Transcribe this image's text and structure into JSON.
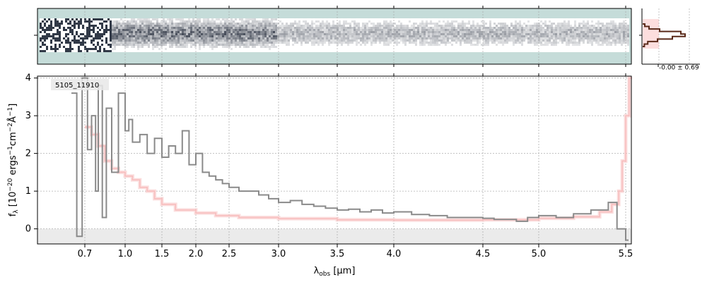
{
  "figure": {
    "label": "5105_11910",
    "hist_annotation": "-0.00 ± 0.69"
  },
  "colors": {
    "spectrum": "#8a8a8a",
    "model": "#f7bcbc",
    "model_fill": "#fbd6d6",
    "stack_background": "#c5dcd9",
    "stack_dark": "#1b2333",
    "hist_line": "#5a2a1a",
    "grid": "#b0b0b0",
    "zero_band": "#ebebeb"
  },
  "chart_data": [
    {
      "type": "heatmap",
      "name": "2d-spectrum-panel",
      "x_range": [
        0.5,
        5.55
      ],
      "description_of_content": "2D stacked spectrum",
      "grid": true
    },
    {
      "type": "bar",
      "name": "residual-histogram",
      "annotation": "-0.00 ± 0.69",
      "orientation": "horizontal",
      "values": [
        0.05,
        0.15,
        0.4,
        0.9,
        1.0,
        0.7,
        0.35,
        0.12,
        0.04
      ]
    },
    {
      "type": "line",
      "xlabel": "λ_obs [μm]",
      "ylabel": "f_λ [10^-20 ergs^-1 cm^-2 Å^-1]",
      "xlim": [
        0.5,
        5.55
      ],
      "ylim": [
        -0.4,
        4.05
      ],
      "xticks": [
        0.7,
        1.0,
        1.5,
        2.0,
        2.5,
        3.0,
        3.5,
        4.0,
        4.5,
        5.0,
        5.5
      ],
      "xtick_labels": [
        "0.7",
        "1.0",
        "1.5",
        "2.0",
        "2.5",
        "3.0",
        "3.5",
        "4.0",
        "4.5",
        "5.0",
        "5.5"
      ],
      "yticks": [
        0,
        1,
        2,
        3,
        4
      ],
      "ytick_labels": [
        "0",
        "1",
        "2",
        "3",
        "4"
      ],
      "grid": true,
      "series": [
        {
          "role": "spectrum",
          "style": "step",
          "x": [
            0.6,
            0.64,
            0.68,
            0.72,
            0.75,
            0.78,
            0.8,
            0.83,
            0.86,
            0.9,
            0.95,
            1.0,
            1.05,
            1.1,
            1.2,
            1.3,
            1.4,
            1.5,
            1.6,
            1.7,
            1.8,
            1.9,
            2.0,
            2.1,
            2.2,
            2.3,
            2.4,
            2.5,
            2.6,
            2.7,
            2.8,
            2.9,
            3.0,
            3.1,
            3.2,
            3.3,
            3.4,
            3.5,
            3.6,
            3.7,
            3.8,
            3.9,
            4.0,
            4.1,
            4.2,
            4.3,
            4.4,
            4.5,
            4.6,
            4.7,
            4.8,
            4.9,
            5.0,
            5.1,
            5.2,
            5.3,
            5.4,
            5.45,
            5.5
          ],
          "y": [
            3.6,
            -0.2,
            4.0,
            2.1,
            3.0,
            1.0,
            3.8,
            0.3,
            3.2,
            1.5,
            3.6,
            2.6,
            2.9,
            2.3,
            2.5,
            2.0,
            2.4,
            1.9,
            2.2,
            2.0,
            2.6,
            1.7,
            2.0,
            1.5,
            1.4,
            1.3,
            1.2,
            1.1,
            1.0,
            1.0,
            0.9,
            0.8,
            0.7,
            0.75,
            0.65,
            0.6,
            0.55,
            0.5,
            0.52,
            0.45,
            0.5,
            0.42,
            0.45,
            0.38,
            0.35,
            0.3,
            0.3,
            0.28,
            0.25,
            0.25,
            0.2,
            0.3,
            0.35,
            0.3,
            0.4,
            0.5,
            0.7,
            0.0,
            -0.3
          ]
        },
        {
          "role": "model",
          "style": "step",
          "x": [
            0.7,
            0.75,
            0.8,
            0.85,
            0.9,
            0.95,
            1.0,
            1.1,
            1.2,
            1.3,
            1.4,
            1.5,
            1.7,
            2.0,
            2.3,
            2.6,
            3.0,
            3.5,
            4.0,
            4.5,
            5.0,
            5.2,
            5.35,
            5.42,
            5.46,
            5.48,
            5.5,
            5.52
          ],
          "y": [
            2.7,
            2.5,
            2.2,
            1.8,
            1.6,
            1.5,
            1.4,
            1.3,
            1.1,
            1.0,
            0.8,
            0.65,
            0.5,
            0.42,
            0.35,
            0.3,
            0.27,
            0.24,
            0.23,
            0.24,
            0.28,
            0.32,
            0.45,
            0.65,
            1.0,
            1.8,
            3.0,
            4.0
          ]
        }
      ]
    }
  ]
}
